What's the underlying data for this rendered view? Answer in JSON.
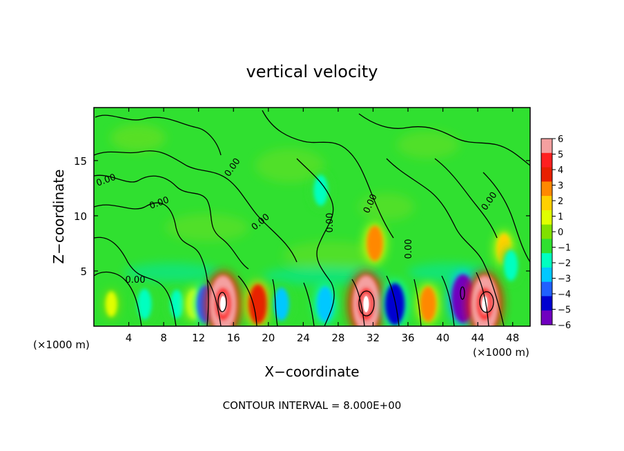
{
  "chart_data": {
    "type": "heatmap",
    "title": "vertical velocity",
    "xlabel": "X−coordinate",
    "ylabel": "Z−coordinate",
    "x_unit_left": "(×1000 m)",
    "x_unit_right": "(×1000 m)",
    "footer": "CONTOUR INTERVAL = 8.000E+00",
    "xlim": [
      0,
      50
    ],
    "ylim": [
      0,
      19.8
    ],
    "x_ticks": [
      4,
      8,
      12,
      16,
      20,
      24,
      28,
      32,
      36,
      40,
      44,
      48
    ],
    "y_ticks": [
      5,
      10,
      15
    ],
    "colorbar": {
      "range": [
        -6,
        6
      ],
      "labels": [
        "6",
        "5",
        "4",
        "3",
        "2",
        "1",
        "0",
        "−1",
        "−2",
        "−3",
        "−4",
        "−5",
        "−6"
      ],
      "colors": [
        "#f4a0a0",
        "#ff2020",
        "#e82000",
        "#ff8800",
        "#ffd000",
        "#e0ff00",
        "#80e000",
        "#30e030",
        "#00ffc0",
        "#00c8ff",
        "#2060ff",
        "#0000d0",
        "#7000c0"
      ]
    },
    "contour_labels": [
      "0.00",
      "0.00",
      "0.00",
      "0.00",
      "0.00",
      "0.00",
      "0.00",
      "0.00",
      "0.00"
    ],
    "background_value": 0,
    "cells": [
      {
        "x": 2.0,
        "z": 2.0,
        "w": 0.8
      },
      {
        "x": 5.8,
        "z": 2.0,
        "w": -2.0
      },
      {
        "x": 9.5,
        "z": 2.0,
        "w": -1.5
      },
      {
        "x": 11.5,
        "z": 2.0,
        "w": 1.5
      },
      {
        "x": 12.8,
        "z": 2.0,
        "w": -3.5
      },
      {
        "x": 14.8,
        "z": 2.0,
        "w": 8.0
      },
      {
        "x": 18.8,
        "z": 2.0,
        "w": 4.0
      },
      {
        "x": 21.5,
        "z": 2.0,
        "w": -2.5
      },
      {
        "x": 26.5,
        "z": 2.0,
        "w": -3.0
      },
      {
        "x": 31.2,
        "z": 2.0,
        "w": 8.0
      },
      {
        "x": 34.5,
        "z": 2.0,
        "w": -4.5
      },
      {
        "x": 38.3,
        "z": 2.0,
        "w": 3.0
      },
      {
        "x": 42.3,
        "z": 2.5,
        "w": -6.0
      },
      {
        "x": 44.8,
        "z": 2.0,
        "w": 8.0
      },
      {
        "x": 32.2,
        "z": 7.5,
        "w": 3.0
      },
      {
        "x": 47.0,
        "z": 7.0,
        "w": 2.0
      },
      {
        "x": 26.0,
        "z": 12.3,
        "w": -2.0
      },
      {
        "x": 47.8,
        "z": 5.5,
        "w": -2.0
      }
    ]
  }
}
